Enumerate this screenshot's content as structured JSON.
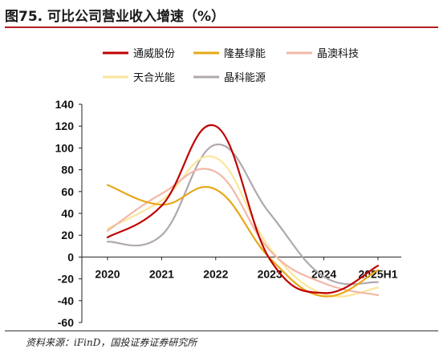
{
  "figure": {
    "title": "图75. 可比公司营业收入增速（%）",
    "source": "资料来源：iFinD，国投证券证券研究所"
  },
  "chart_data": {
    "type": "line",
    "smooth": true,
    "categories": [
      "2020",
      "2021",
      "2022",
      "2023",
      "2024",
      "2025H1"
    ],
    "ylim": [
      -60,
      140
    ],
    "yticks": [
      -60,
      -40,
      -20,
      0,
      20,
      40,
      60,
      80,
      100,
      120,
      140
    ],
    "grid": false,
    "legend_position": "top",
    "series": [
      {
        "name": "通威股份",
        "color": "#c00000",
        "values": [
          18,
          47,
          120,
          -2,
          -33,
          -8
        ]
      },
      {
        "name": "隆基绿能",
        "color": "#e6a817",
        "values": [
          66,
          48,
          62,
          -1,
          -36,
          -12
        ]
      },
      {
        "name": "晶澳科技",
        "color": "#f2b8a6",
        "values": [
          24,
          58,
          78,
          6,
          -24,
          -35
        ]
      },
      {
        "name": "天合光能",
        "color": "#fbe69a",
        "values": [
          26,
          52,
          91,
          8,
          -34,
          -28
        ]
      },
      {
        "name": "晶科能源",
        "color": "#b0a8ae",
        "values": [
          14,
          20,
          103,
          40,
          -18,
          -23
        ]
      }
    ]
  }
}
